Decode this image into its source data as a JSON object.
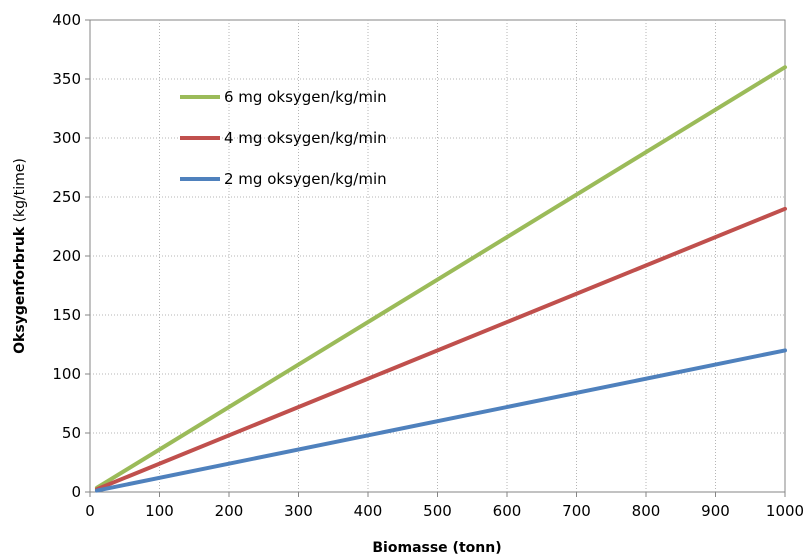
{
  "chart_data": {
    "type": "line",
    "x_ticks": [
      0,
      100,
      200,
      300,
      400,
      500,
      600,
      700,
      800,
      900,
      1000
    ],
    "y_ticks": [
      0,
      50,
      100,
      150,
      200,
      250,
      300,
      350,
      400
    ],
    "xlim": [
      0,
      1000
    ],
    "ylim": [
      0,
      400
    ],
    "grid": true,
    "xlabel": "Biomasse (tonn)",
    "ylabel_bold": "Oksygenforbruk",
    "ylabel_unit": " (kg/time)",
    "legend_position": "top-left",
    "series": [
      {
        "name": "6 mg oksygen/kg/min",
        "color": "#9bbb59",
        "x": [
          10,
          1000
        ],
        "y": [
          3.6,
          360
        ]
      },
      {
        "name": "4 mg oksygen/kg/min",
        "color": "#c0504d",
        "x": [
          10,
          1000
        ],
        "y": [
          2.4,
          240
        ]
      },
      {
        "name": "2 mg oksygen/kg/min",
        "color": "#4f81bd",
        "x": [
          10,
          1000
        ],
        "y": [
          1.2,
          120
        ]
      }
    ]
  }
}
